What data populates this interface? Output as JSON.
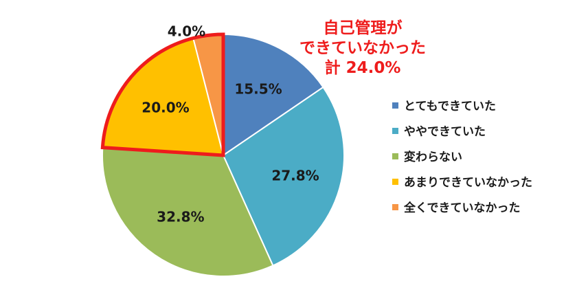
{
  "chart_data": {
    "type": "pie",
    "categories": [
      "とてもできていた",
      "ややできていた",
      "変わらない",
      "あまりできていなかった",
      "全くできていなかった"
    ],
    "values": [
      15.5,
      27.8,
      32.8,
      20.0,
      4.0
    ],
    "labels": [
      "15.5%",
      "27.8%",
      "32.8%",
      "20.0%",
      "4.0%"
    ],
    "colors": [
      "#4f81bd",
      "#4bacc6",
      "#9bbb59",
      "#ffc000",
      "#f79646"
    ],
    "start_angle": "12 o'clock",
    "direction": "clockwise",
    "legend_position": "right",
    "highlight": {
      "categories": [
        "あまりできていなかった",
        "全くできていなかった"
      ],
      "outline_color": "#ee1c1c"
    },
    "annotation": {
      "lines": [
        "自己管理が",
        "できていなかった",
        "計 24.0%"
      ],
      "color": "#ee1c1c"
    }
  }
}
